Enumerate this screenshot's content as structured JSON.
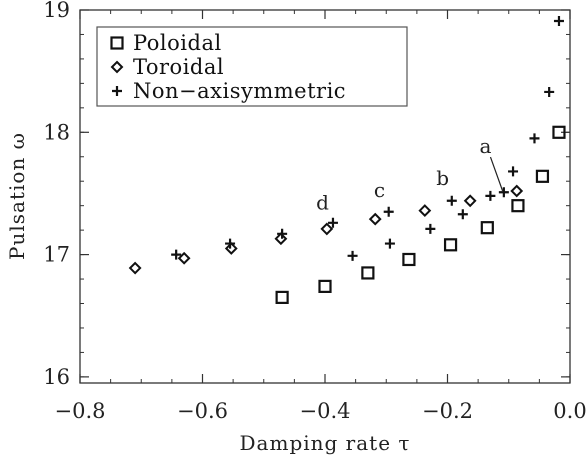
{
  "chart_data": {
    "type": "scatter",
    "title": "",
    "xlabel": "Damping rate τ",
    "ylabel": "Pulsation ω",
    "xlim": [
      -0.8,
      0.0
    ],
    "ylim": [
      15.95,
      19.0
    ],
    "xticks": [
      -0.8,
      -0.6,
      -0.4,
      -0.2,
      0.0
    ],
    "xtick_labels": [
      "−0.8",
      "−0.6",
      "−0.4",
      "−0.2",
      "0.0"
    ],
    "yticks": [
      16,
      17,
      18,
      19
    ],
    "ytick_labels": [
      "16",
      "17",
      "18",
      "19"
    ],
    "grid": false,
    "legend_position": "top-left",
    "series": [
      {
        "name": "Poloidal",
        "marker": "square",
        "points": [
          {
            "x": -0.47,
            "y": 16.65
          },
          {
            "x": -0.4,
            "y": 16.74
          },
          {
            "x": -0.33,
            "y": 16.85
          },
          {
            "x": -0.263,
            "y": 16.96
          },
          {
            "x": -0.195,
            "y": 17.08
          },
          {
            "x": -0.135,
            "y": 17.22
          },
          {
            "x": -0.085,
            "y": 17.4
          },
          {
            "x": -0.045,
            "y": 17.64
          },
          {
            "x": -0.018,
            "y": 18.0
          }
        ]
      },
      {
        "name": "Toroidal",
        "marker": "diamond",
        "points": [
          {
            "x": -0.71,
            "y": 16.89
          },
          {
            "x": -0.63,
            "y": 16.97
          },
          {
            "x": -0.553,
            "y": 17.05
          },
          {
            "x": -0.472,
            "y": 17.13
          },
          {
            "x": -0.397,
            "y": 17.21
          },
          {
            "x": -0.318,
            "y": 17.29
          },
          {
            "x": -0.237,
            "y": 17.36
          },
          {
            "x": -0.163,
            "y": 17.44
          },
          {
            "x": -0.087,
            "y": 17.52
          }
        ]
      },
      {
        "name": "Non−axisymmetric",
        "marker": "plus",
        "points": [
          {
            "x": -0.643,
            "y": 17.0
          },
          {
            "x": -0.555,
            "y": 17.09
          },
          {
            "x": -0.47,
            "y": 17.17
          },
          {
            "x": -0.387,
            "y": 17.26
          },
          {
            "x": -0.355,
            "y": 16.99
          },
          {
            "x": -0.296,
            "y": 17.35
          },
          {
            "x": -0.294,
            "y": 17.09
          },
          {
            "x": -0.228,
            "y": 17.21
          },
          {
            "x": -0.193,
            "y": 17.44
          },
          {
            "x": -0.175,
            "y": 17.33
          },
          {
            "x": -0.13,
            "y": 17.48
          },
          {
            "x": -0.108,
            "y": 17.51
          },
          {
            "x": -0.093,
            "y": 17.68
          },
          {
            "x": -0.058,
            "y": 17.95
          },
          {
            "x": -0.034,
            "y": 18.33
          },
          {
            "x": -0.018,
            "y": 18.91
          }
        ]
      }
    ],
    "annotations": [
      {
        "text": "a",
        "x": -0.138,
        "y": 17.83,
        "arrow_to": {
          "x": -0.11,
          "y": 17.52
        }
      },
      {
        "text": "b",
        "x": -0.208,
        "y": 17.57
      },
      {
        "text": "c",
        "x": -0.311,
        "y": 17.47
      },
      {
        "text": "d",
        "x": -0.404,
        "y": 17.37
      }
    ]
  }
}
